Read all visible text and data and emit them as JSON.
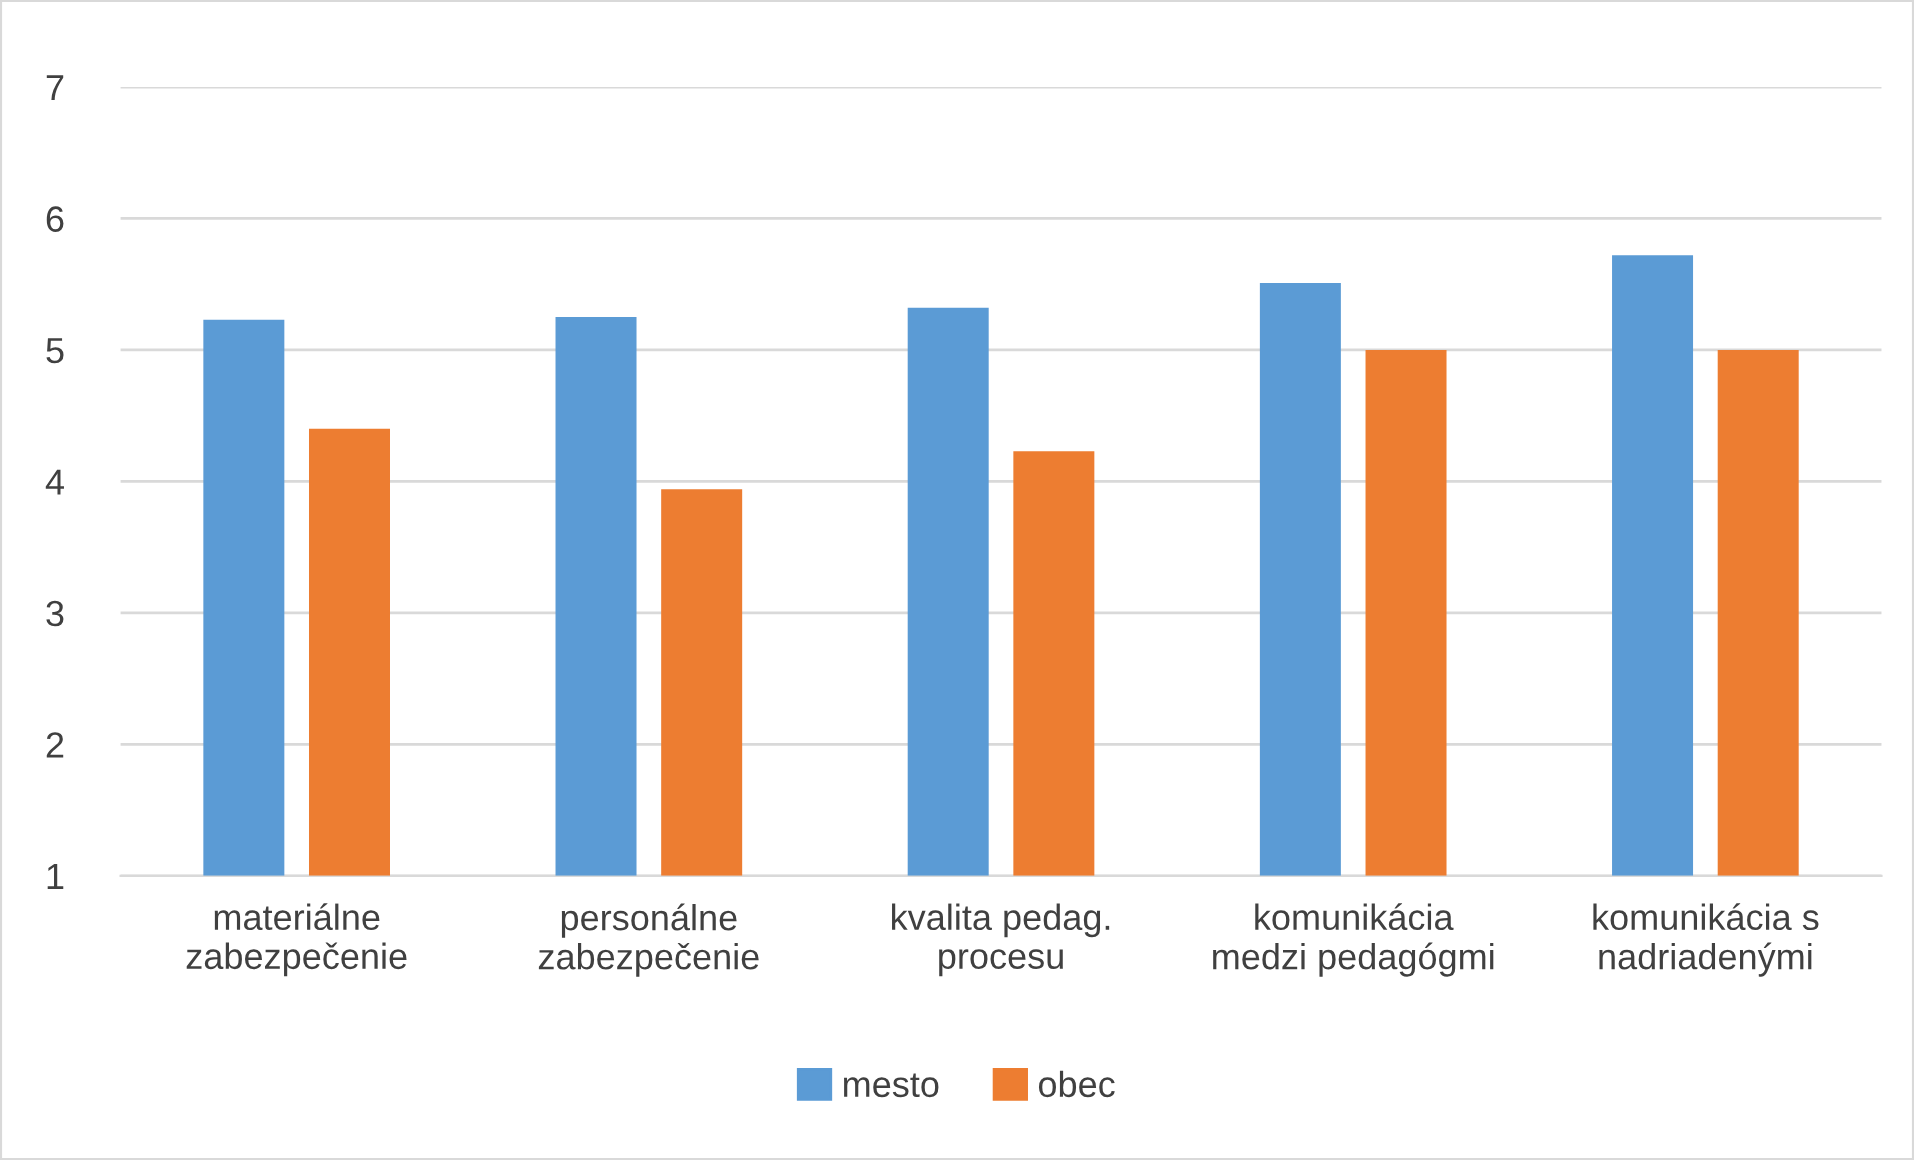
{
  "chart_data": {
    "type": "bar",
    "categories": [
      "materiálne\nzabezpečenie",
      "personálne\nzabezpečenie",
      "kvalita pedag.\nprocesu",
      "komunikácia\nmedzi pedagógmi",
      "komunikácia s\nnadriadenými"
    ],
    "series": [
      {
        "name": "mesto",
        "color": "#5b9bd5",
        "values": [
          5.23,
          5.25,
          5.32,
          5.51,
          5.72
        ]
      },
      {
        "name": "obec",
        "color": "#ed7d31",
        "values": [
          4.4,
          3.94,
          4.23,
          5.0,
          5.0
        ]
      }
    ],
    "ylim": [
      1,
      7
    ],
    "yticks": [
      1,
      2,
      3,
      4,
      5,
      6,
      7
    ],
    "grid": "y",
    "legend": "bottom"
  }
}
